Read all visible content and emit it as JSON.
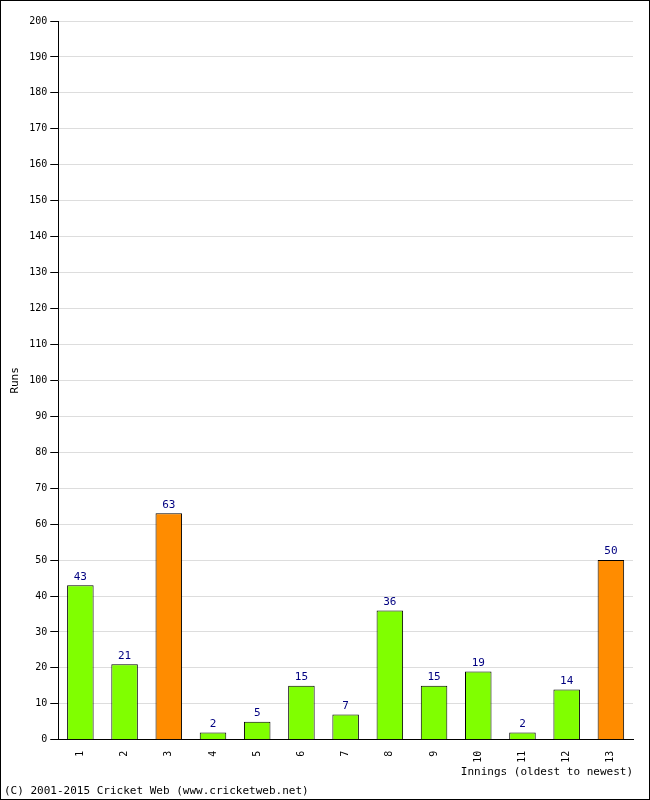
{
  "chart_data": {
    "type": "bar",
    "categories": [
      "1",
      "2",
      "3",
      "4",
      "5",
      "6",
      "7",
      "8",
      "9",
      "10",
      "11",
      "12",
      "13"
    ],
    "values": [
      43,
      21,
      63,
      2,
      5,
      15,
      7,
      36,
      15,
      19,
      2,
      14,
      50
    ],
    "colors": [
      "#80ff00",
      "#80ff00",
      "#ff8c00",
      "#80ff00",
      "#80ff00",
      "#80ff00",
      "#80ff00",
      "#80ff00",
      "#80ff00",
      "#80ff00",
      "#80ff00",
      "#80ff00",
      "#ff8c00"
    ],
    "ylim": [
      0,
      200
    ],
    "yticks": [
      0,
      10,
      20,
      30,
      40,
      50,
      60,
      70,
      80,
      90,
      100,
      110,
      120,
      130,
      140,
      150,
      160,
      170,
      180,
      190,
      200
    ],
    "grid": true,
    "data_labels": true,
    "x_label": "Innings (oldest to newest)",
    "y_label": "Runs",
    "annotations": [
      "(C) 2001-2015 Cricket Web (www.cricketweb.net)"
    ]
  }
}
